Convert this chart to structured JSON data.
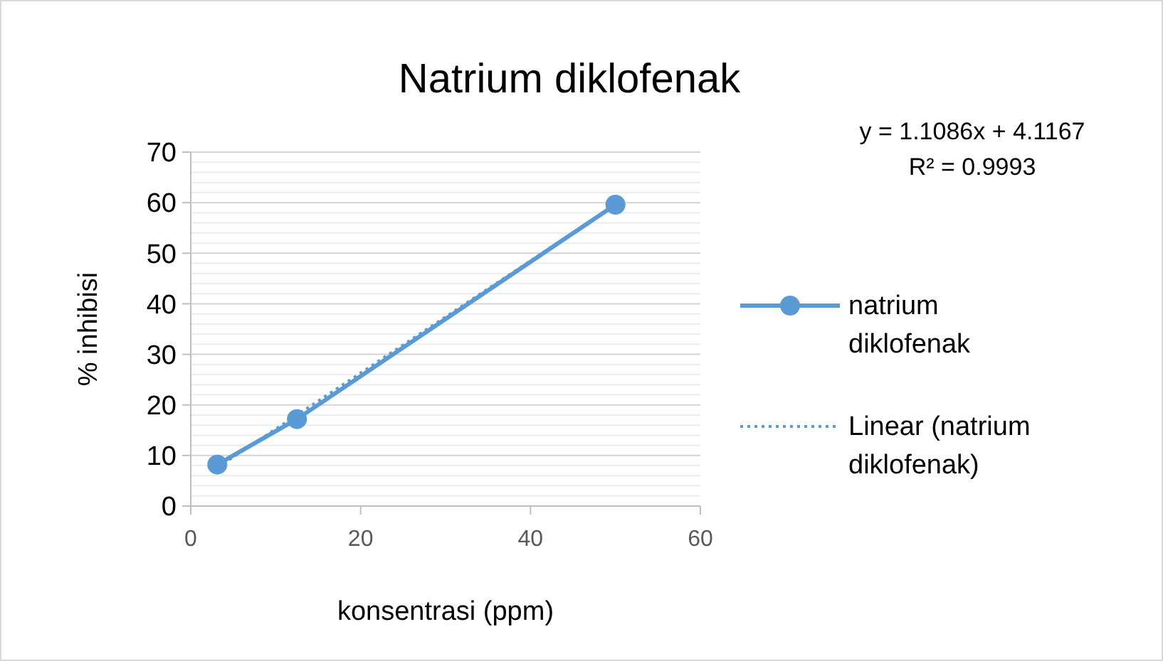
{
  "chart_data": {
    "type": "line",
    "title": "Natrium diklofenak",
    "xlabel": "konsentrasi (ppm)",
    "ylabel": "% inhibisi",
    "xlim": [
      0,
      60
    ],
    "xticks": [
      0,
      20,
      40,
      60
    ],
    "ylim": [
      0,
      70
    ],
    "yticks": [
      0,
      {
        "value": 2,
        "label": null
      },
      {
        "value": 4,
        "label": null
      },
      {
        "value": 6,
        "label": null
      },
      {
        "value": 8,
        "label": null
      },
      10,
      {
        "value": 12,
        "label": null
      },
      {
        "value": 14,
        "label": null
      },
      {
        "value": 16,
        "label": null
      },
      {
        "value": 18,
        "label": null
      },
      20,
      {
        "value": 22,
        "label": null
      },
      {
        "value": 24,
        "label": null
      },
      {
        "value": 26,
        "label": null
      },
      {
        "value": 28,
        "label": null
      },
      30,
      {
        "value": 32,
        "label": null
      },
      {
        "value": 34,
        "label": null
      },
      {
        "value": 36,
        "label": null
      },
      {
        "value": 38,
        "label": null
      },
      40,
      {
        "value": 42,
        "label": null
      },
      {
        "value": 44,
        "label": null
      },
      {
        "value": 46,
        "label": null
      },
      {
        "value": 48,
        "label": null
      },
      50,
      {
        "value": 52,
        "label": null
      },
      {
        "value": 54,
        "label": null
      },
      {
        "value": 56,
        "label": null
      },
      {
        "value": 58,
        "label": null
      },
      60,
      {
        "value": 62,
        "label": null
      },
      {
        "value": 64,
        "label": null
      },
      {
        "value": 66,
        "label": null
      },
      {
        "value": 68,
        "label": null
      },
      70
    ],
    "grid": "y",
    "legend": "right",
    "annotations": [
      "y = 1.1086x + 4.1167",
      "R² = 0.9993"
    ],
    "series": [
      {
        "name": "natrium diklofenak",
        "color": "#5b9bd5",
        "x": [
          3.125,
          12.5,
          50
        ],
        "values": [
          8.2,
          17.2,
          59.6
        ],
        "marker": "circle",
        "line_style": "solid"
      },
      {
        "name": "Linear (natrium diklofenak)",
        "color": "#5b9bd5",
        "x": [
          3.125,
          50
        ],
        "values": [
          7.6,
          59.6
        ],
        "marker": "none",
        "line_style": "dotted"
      }
    ]
  }
}
